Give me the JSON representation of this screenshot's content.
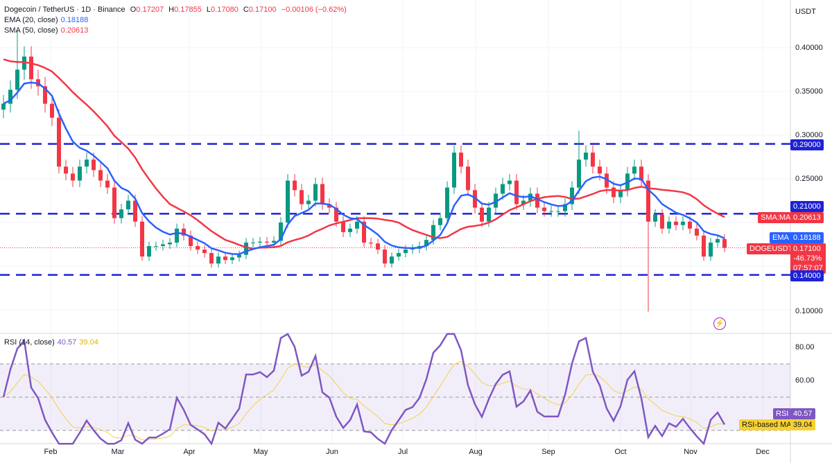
{
  "header": {
    "symbol": "Dogecoin / TetherUS · 1D · Binance",
    "o_label": "O",
    "o": "0.17207",
    "h_label": "H",
    "h": "0.17855",
    "l_label": "L",
    "l": "0.17080",
    "c_label": "C",
    "c": "0.17100",
    "change": "−0.00106 (−0.62%)",
    "ema_label": "EMA (20, close)",
    "ema_value": "0.18188",
    "sma_label": "SMA (50, close)",
    "sma_value": "0.20613",
    "rsi_label": "RSI (14, close)",
    "rsi_value": "40.57",
    "rsi_ma_value": "39.04"
  },
  "price_axis": {
    "currency": "USDT",
    "ticks": [
      "0.40000",
      "0.35000",
      "0.30000",
      "0.25000",
      "0.10000"
    ]
  },
  "badges": {
    "level_290": "0.29000",
    "level_210": "0.21000",
    "sma_tag": "SMA:MA",
    "sma_value": "0.20613",
    "ema_tag": "EMA",
    "ema_value": "0.18188",
    "symbol_tag": "DOGEUSDT",
    "price": "0.17100",
    "change_pct": "-46.73%",
    "countdown": "07:57:07",
    "level_140": "0.14000",
    "rsi_tag": "RSI",
    "rsi_value": "40.57",
    "rsi_ma_tag": "RSI-based MA",
    "rsi_ma_value": "39.04"
  },
  "rsi_axis": {
    "ticks": [
      "80.00",
      "60.00"
    ]
  },
  "time_axis": [
    "Feb",
    "Mar",
    "Apr",
    "May",
    "Jun",
    "Jul",
    "Aug",
    "Sep",
    "Oct",
    "Nov",
    "Dec"
  ],
  "colors": {
    "up": "#089981",
    "down": "#f23645",
    "ema": "#2962ff",
    "sma": "#f23645",
    "level": "#1e22d6",
    "rsi": "#7e57c2",
    "rsi_ma": "#f2d14a"
  },
  "chart_data": {
    "type": "candlestick",
    "title": "Dogecoin / TetherUS · 1D · Binance",
    "step_days": 3,
    "closes": [
      0.336,
      0.352,
      0.375,
      0.39,
      0.364,
      0.356,
      0.336,
      0.32,
      0.264,
      0.256,
      0.248,
      0.264,
      0.272,
      0.26,
      0.248,
      0.24,
      0.205,
      0.215,
      0.225,
      0.201,
      0.161,
      0.173,
      0.173,
      0.175,
      0.177,
      0.193,
      0.185,
      0.173,
      0.169,
      0.165,
      0.153,
      0.161,
      0.157,
      0.16,
      0.163,
      0.177,
      0.177,
      0.178,
      0.177,
      0.179,
      0.2,
      0.248,
      0.237,
      0.221,
      0.225,
      0.244,
      0.221,
      0.217,
      0.201,
      0.189,
      0.193,
      0.201,
      0.177,
      0.176,
      0.169,
      0.153,
      0.161,
      0.165,
      0.169,
      0.17,
      0.173,
      0.18,
      0.197,
      0.205,
      0.24,
      0.28,
      0.264,
      0.237,
      0.217,
      0.201,
      0.217,
      0.233,
      0.244,
      0.248,
      0.221,
      0.225,
      0.233,
      0.217,
      0.213,
      0.213,
      0.213,
      0.221,
      0.24,
      0.272,
      0.28,
      0.264,
      0.256,
      0.24,
      0.229,
      0.237,
      0.256,
      0.264,
      0.248,
      0.201,
      0.209,
      0.193,
      0.201,
      0.197,
      0.201,
      0.193,
      0.185,
      0.161,
      0.177,
      0.181,
      0.171
    ],
    "wick_extremes": [
      {
        "index": 2,
        "high": 0.42
      },
      {
        "index": 83,
        "high": 0.305
      },
      {
        "index": 93,
        "low": 0.098
      }
    ],
    "levels": [
      0.29,
      0.21,
      0.14
    ],
    "ylim": [
      0.08,
      0.44
    ],
    "rsi_ylim": [
      20,
      90
    ],
    "rsi_levels": [
      70,
      50,
      30
    ]
  }
}
